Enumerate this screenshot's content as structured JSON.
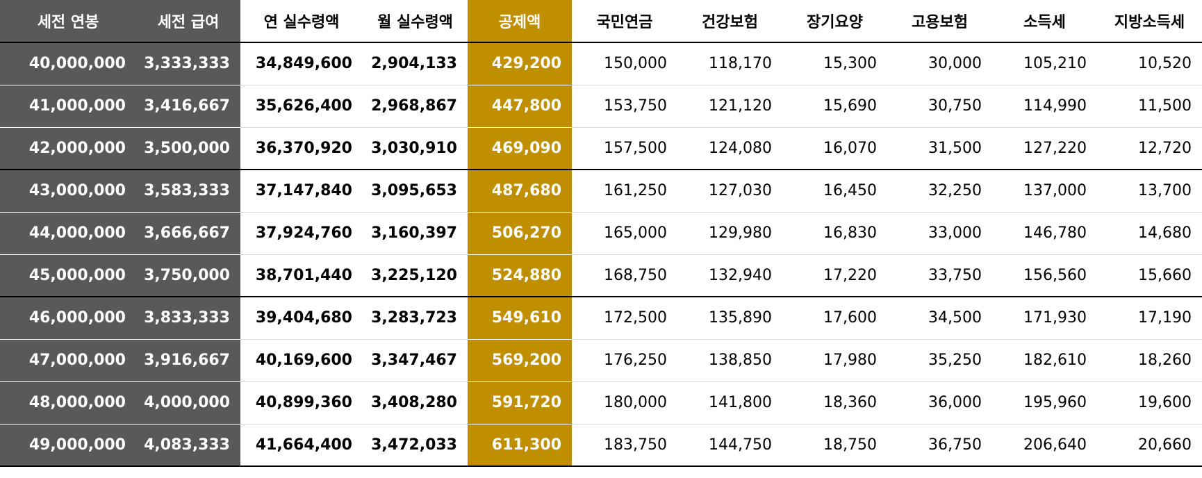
{
  "colors": {
    "dark_column": "#595959",
    "deduction_column": "#bf8f00",
    "text_on_color": "#ffffff"
  },
  "headers": [
    "세전 연봉",
    "세전 급여",
    "연 실수령액",
    "월 실수령액",
    "공제액",
    "국민연금",
    "건강보험",
    "장기요양",
    "고용보험",
    "소득세",
    "지방소득세"
  ],
  "rows": [
    [
      "40,000,000",
      "3,333,333",
      "34,849,600",
      "2,904,133",
      "429,200",
      "150,000",
      "118,170",
      "15,300",
      "30,000",
      "105,210",
      "10,520"
    ],
    [
      "41,000,000",
      "3,416,667",
      "35,626,400",
      "2,968,867",
      "447,800",
      "153,750",
      "121,120",
      "15,690",
      "30,750",
      "114,990",
      "11,500"
    ],
    [
      "42,000,000",
      "3,500,000",
      "36,370,920",
      "3,030,910",
      "469,090",
      "157,500",
      "124,080",
      "16,070",
      "31,500",
      "127,220",
      "12,720"
    ],
    [
      "43,000,000",
      "3,583,333",
      "37,147,840",
      "3,095,653",
      "487,680",
      "161,250",
      "127,030",
      "16,450",
      "32,250",
      "137,000",
      "13,700"
    ],
    [
      "44,000,000",
      "3,666,667",
      "37,924,760",
      "3,160,397",
      "506,270",
      "165,000",
      "129,980",
      "16,830",
      "33,000",
      "146,780",
      "14,680"
    ],
    [
      "45,000,000",
      "3,750,000",
      "38,701,440",
      "3,225,120",
      "524,880",
      "168,750",
      "132,940",
      "17,220",
      "33,750",
      "156,560",
      "15,660"
    ],
    [
      "46,000,000",
      "3,833,333",
      "39,404,680",
      "3,283,723",
      "549,610",
      "172,500",
      "135,890",
      "17,600",
      "34,500",
      "171,930",
      "17,190"
    ],
    [
      "47,000,000",
      "3,916,667",
      "40,169,600",
      "3,347,467",
      "569,200",
      "176,250",
      "138,850",
      "17,980",
      "35,250",
      "182,610",
      "18,260"
    ],
    [
      "48,000,000",
      "4,000,000",
      "40,899,360",
      "3,408,280",
      "591,720",
      "180,000",
      "141,800",
      "18,360",
      "36,000",
      "195,960",
      "19,600"
    ],
    [
      "49,000,000",
      "4,083,333",
      "41,664,400",
      "3,472,033",
      "611,300",
      "183,750",
      "144,750",
      "18,750",
      "36,750",
      "206,640",
      "20,660"
    ]
  ]
}
